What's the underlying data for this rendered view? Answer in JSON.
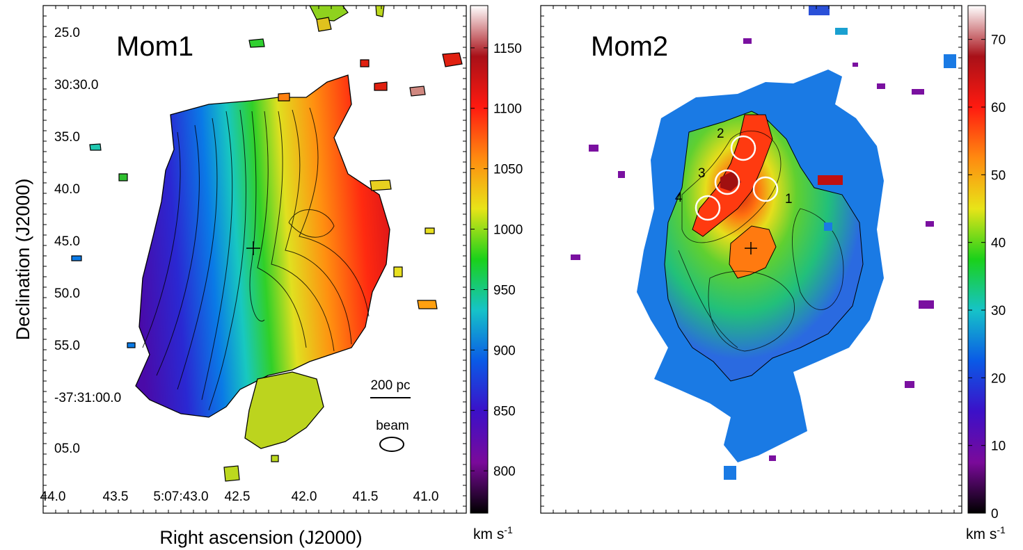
{
  "chart_data": [
    {
      "type": "heatmap",
      "panel_label": "Mom1",
      "ylabel": "Declination (J2000)",
      "xlabel": "Right ascension (J2000)",
      "x_tick_labels": [
        "44.0",
        "43.5",
        "5:07:43.0",
        "42.5",
        "42.0",
        "41.5",
        "41.0"
      ],
      "y_tick_labels": [
        "25.0",
        "30:30.0",
        "35.0",
        "40.0",
        "45.0",
        "50.0",
        "55.0",
        "-37:31:00.0",
        "05.0"
      ],
      "colorbar": {
        "ticks": [
          "800",
          "850",
          "900",
          "950",
          "1000",
          "1050",
          "1100",
          "1150"
        ],
        "unit_base": "km s",
        "unit_sup": "-1",
        "range": [
          765,
          1185
        ],
        "stops": [
          "#000000",
          "#7a0a9a",
          "#3c10c8",
          "#0a5ae6",
          "#16c3c8",
          "#1ad11a",
          "#e8e418",
          "#ff8a10",
          "#ff1a10",
          "#a81018",
          "#ffffff"
        ]
      },
      "annotations": {
        "scalebar": "200 pc",
        "beam": "beam"
      }
    },
    {
      "type": "heatmap",
      "panel_label": "Mom2",
      "colorbar": {
        "ticks": [
          "0",
          "10",
          "20",
          "30",
          "40",
          "50",
          "60",
          "70"
        ],
        "unit_base": "km s",
        "unit_sup": "-1",
        "range": [
          0,
          75
        ],
        "stops": [
          "#000000",
          "#7a0a9a",
          "#3c10c8",
          "#0a5ae6",
          "#16c3c8",
          "#1ad11a",
          "#e8e418",
          "#ff8a10",
          "#ff1a10",
          "#a81018",
          "#ffffff"
        ]
      },
      "regions": [
        "1",
        "2",
        "3",
        "4"
      ]
    }
  ]
}
